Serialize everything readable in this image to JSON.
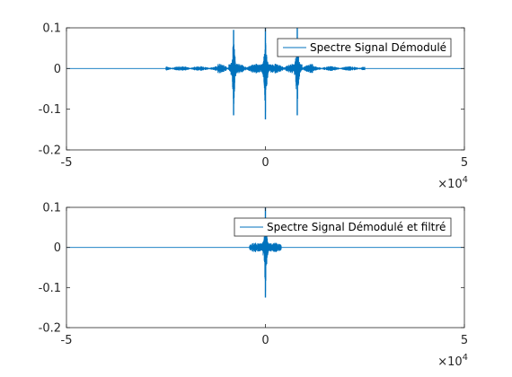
{
  "figure": {
    "background": "#ffffff",
    "axis_color": "#262626",
    "line_color": "#0072bd"
  },
  "chart_data": [
    {
      "type": "line",
      "title": "",
      "xlabel": "",
      "ylabel": "",
      "xlim": [
        -50000,
        50000
      ],
      "ylim": [
        -0.2,
        0.1
      ],
      "x_ticks": [
        -50000,
        0,
        50000
      ],
      "x_tick_labels": [
        "-5",
        "0",
        "5"
      ],
      "x_exponent_base": "×10",
      "x_exponent_power": "4",
      "y_ticks": [
        0.1,
        0,
        -0.1,
        -0.2
      ],
      "y_tick_labels": [
        "0.1",
        "0",
        "-0.1",
        "-0.2"
      ],
      "grid": false,
      "legend_position": "top-right",
      "series": [
        {
          "name": "Spectre Signal Démodulé",
          "color": "#0072bd",
          "peaks": [
            {
              "x": -8000,
              "max": 0.095,
              "min": -0.115
            },
            {
              "x": 0,
              "max": 0.1,
              "min": -0.125
            },
            {
              "x": 8000,
              "max": 0.1,
              "min": -0.115
            }
          ],
          "noise_ranges": [
            {
              "from": -25000,
              "to": 25000,
              "amplitude": 0.006
            },
            {
              "from": -12000,
              "to": 12000,
              "amplitude": 0.012
            }
          ]
        }
      ]
    },
    {
      "type": "line",
      "title": "",
      "xlabel": "",
      "ylabel": "",
      "xlim": [
        -50000,
        50000
      ],
      "ylim": [
        -0.2,
        0.1
      ],
      "x_ticks": [
        -50000,
        0,
        50000
      ],
      "x_tick_labels": [
        "-5",
        "0",
        "5"
      ],
      "x_exponent_base": "×10",
      "x_exponent_power": "4",
      "y_ticks": [
        0.1,
        0,
        -0.1,
        -0.2
      ],
      "y_tick_labels": [
        "0.1",
        "0",
        "-0.1",
        "-0.2"
      ],
      "grid": false,
      "legend_position": "top-right",
      "series": [
        {
          "name": "Spectre Signal Démodulé et filtré",
          "color": "#0072bd",
          "peaks": [
            {
              "x": 0,
              "max": 0.1,
              "min": -0.125
            }
          ],
          "noise_ranges": [
            {
              "from": -4000,
              "to": 4000,
              "amplitude": 0.012
            }
          ]
        }
      ]
    }
  ]
}
